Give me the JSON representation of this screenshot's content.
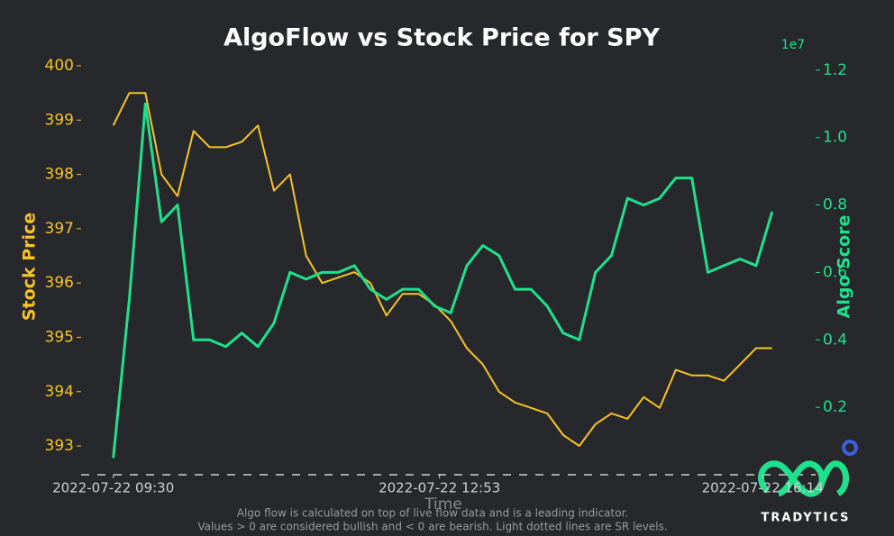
{
  "chart_data": {
    "type": "line",
    "title": "AlgoFlow vs Stock Price for SPY",
    "x_label": "Time",
    "y_label": "Stock Price",
    "y2_label": "Algo Score",
    "y2_offset_label": "1e7",
    "x": [
      "2022-07-22 09:30",
      "2022-07-22 09:40",
      "2022-07-22 09:50",
      "2022-07-22 10:00",
      "2022-07-22 10:10",
      "2022-07-22 10:20",
      "2022-07-22 10:30",
      "2022-07-22 10:40",
      "2022-07-22 10:50",
      "2022-07-22 11:00",
      "2022-07-22 11:10",
      "2022-07-22 11:20",
      "2022-07-22 11:30",
      "2022-07-22 11:40",
      "2022-07-22 11:50",
      "2022-07-22 12:00",
      "2022-07-22 12:10",
      "2022-07-22 12:20",
      "2022-07-22 12:30",
      "2022-07-22 12:40",
      "2022-07-22 12:50",
      "2022-07-22 13:00",
      "2022-07-22 13:10",
      "2022-07-22 13:20",
      "2022-07-22 13:30",
      "2022-07-22 13:40",
      "2022-07-22 13:50",
      "2022-07-22 14:00",
      "2022-07-22 14:10",
      "2022-07-22 14:20",
      "2022-07-22 14:30",
      "2022-07-22 14:40",
      "2022-07-22 14:50",
      "2022-07-22 15:00",
      "2022-07-22 15:10",
      "2022-07-22 15:20",
      "2022-07-22 15:30",
      "2022-07-22 15:40",
      "2022-07-22 15:50",
      "2022-07-22 16:00",
      "2022-07-22 16:10",
      "2022-07-22 16:20"
    ],
    "series": [
      {
        "name": "Stock Price",
        "color": "#f7c326",
        "values": [
          398.9,
          399.5,
          399.5,
          398.0,
          397.6,
          398.8,
          398.5,
          398.5,
          398.6,
          398.9,
          397.7,
          398.0,
          396.5,
          396.0,
          396.1,
          396.2,
          396.0,
          395.4,
          395.8,
          395.8,
          395.6,
          395.3,
          394.8,
          394.5,
          394.0,
          393.8,
          393.7,
          393.6,
          393.2,
          393.0,
          393.4,
          393.6,
          393.5,
          393.9,
          393.7,
          394.4,
          394.3,
          394.3,
          394.2,
          394.5,
          394.8,
          394.8
        ]
      },
      {
        "name": "Algo Score",
        "color": "#1fe08c",
        "axis": "y2",
        "values": [
          0.05,
          0.52,
          1.1,
          0.75,
          0.8,
          0.4,
          0.4,
          0.38,
          0.42,
          0.38,
          0.45,
          0.6,
          0.58,
          0.6,
          0.6,
          0.62,
          0.55,
          0.52,
          0.55,
          0.55,
          0.5,
          0.48,
          0.62,
          0.68,
          0.65,
          0.55,
          0.55,
          0.5,
          0.42,
          0.4,
          0.6,
          0.65,
          0.82,
          0.8,
          0.82,
          0.88,
          0.88,
          0.6,
          0.62,
          0.64,
          0.62,
          0.78
        ]
      }
    ],
    "xlim": [
      "2022-07-22 09:10",
      "2022-07-22 16:47"
    ],
    "xticks": [
      "2022-07-22 09:30",
      "2022-07-22 12:53",
      "2022-07-22 16:14"
    ],
    "ylim": [
      392.47,
      400.05
    ],
    "yticks": [
      393,
      394,
      395,
      396,
      397,
      398,
      399,
      400
    ],
    "y2lim": [
      0,
      1.221
    ],
    "y2ticks": [
      0.2,
      0.4,
      0.6,
      0.8,
      {
        "value": 1,
        "label": "1.0"
      },
      1.2
    ],
    "footnote": [
      "Algo flow is calculated on top of live flow data and is a leading indicator.",
      "Values > 0 are considered bullish and < 0 are bearish. Light dotted lines are SR levels."
    ],
    "logo_text": "TRADYTICS"
  }
}
